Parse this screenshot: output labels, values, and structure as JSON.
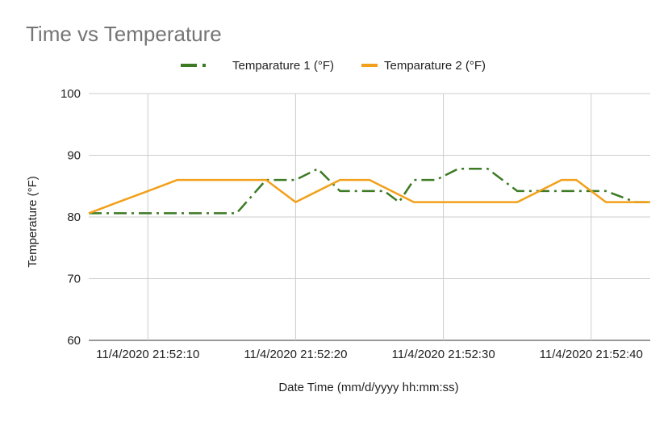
{
  "chart_data": {
    "type": "line",
    "title": "Time vs Temperature",
    "xlabel": "Date Time (mm/d/yyyy hh:mm:ss)",
    "ylabel": "Temperature (°F)",
    "ylim": [
      60,
      100
    ],
    "yticks": [
      "100",
      "90",
      "80",
      "70",
      "60"
    ],
    "xlim": [
      "11/4/2020 21:52:06",
      "11/4/2020 21:52:44"
    ],
    "xticks": [
      "11/4/2020 21:52:10",
      "11/4/2020 21:52:20",
      "11/4/2020 21:52:30",
      "11/4/2020 21:52:40"
    ],
    "grid": true,
    "legend_position": "top",
    "series": [
      {
        "name": "Temparature 1 (°F)",
        "color": "#3c7a23",
        "style": "dash-dot",
        "x": [
          "11/4/2020 21:52:06",
          "11/4/2020 21:52:12",
          "11/4/2020 21:52:16",
          "11/4/2020 21:52:18",
          "11/4/2020 21:52:20",
          "11/4/2020 21:52:21.5",
          "11/4/2020 21:52:23",
          "11/4/2020 21:52:26",
          "11/4/2020 21:52:27",
          "11/4/2020 21:52:28",
          "11/4/2020 21:52:29.5",
          "11/4/2020 21:52:31",
          "11/4/2020 21:52:33",
          "11/4/2020 21:52:35",
          "11/4/2020 21:52:38",
          "11/4/2020 21:52:41",
          "11/4/2020 21:52:43",
          "11/4/2020 21:52:44"
        ],
        "values": [
          80.6,
          80.6,
          80.6,
          86.0,
          86.0,
          87.8,
          84.2,
          84.2,
          82.4,
          86.0,
          86.0,
          87.8,
          87.8,
          84.2,
          84.2,
          84.2,
          82.4,
          82.4
        ]
      },
      {
        "name": "Temparature 2 (°F)",
        "color": "#f2a01a",
        "style": "solid",
        "x": [
          "11/4/2020 21:52:06",
          "11/4/2020 21:52:08",
          "11/4/2020 21:52:10",
          "11/4/2020 21:52:12",
          "11/4/2020 21:52:16",
          "11/4/2020 21:52:18",
          "11/4/2020 21:52:20",
          "11/4/2020 21:52:23",
          "11/4/2020 21:52:25",
          "11/4/2020 21:52:28",
          "11/4/2020 21:52:30",
          "11/4/2020 21:52:32",
          "11/4/2020 21:52:35",
          "11/4/2020 21:52:38",
          "11/4/2020 21:52:39",
          "11/4/2020 21:52:41",
          "11/4/2020 21:52:44"
        ],
        "values": [
          80.6,
          82.4,
          84.2,
          86.0,
          86.0,
          86.0,
          82.4,
          86.0,
          86.0,
          82.4,
          82.4,
          82.4,
          82.4,
          86.0,
          86.0,
          82.4,
          82.4
        ]
      }
    ]
  }
}
